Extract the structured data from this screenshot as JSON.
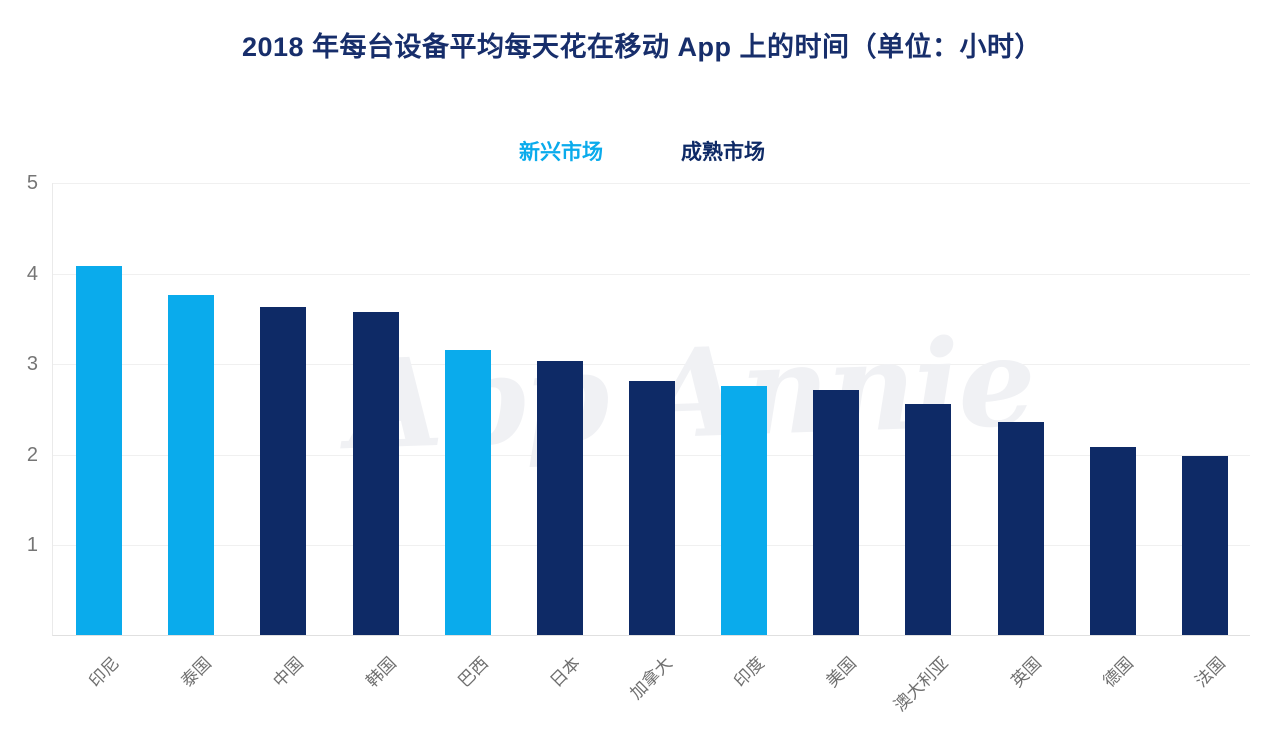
{
  "title": "2018 年每台设备平均每天花在移动 App 上的时间（单位：小时）",
  "title_color": "#172e6b",
  "watermark": "App Annie",
  "legend": {
    "items": [
      {
        "label": "新兴市场",
        "color": "#0aabec"
      },
      {
        "label": "成熟市场",
        "color": "#0e2a66"
      }
    ]
  },
  "chart_data": {
    "type": "bar",
    "title": "2018 年每台设备平均每天花在移动 App 上的时间（单位：小时）",
    "categories": [
      "印尼",
      "泰国",
      "中国",
      "韩国",
      "巴西",
      "日本",
      "加拿大",
      "印度",
      "美国",
      "澳大利亚",
      "英国",
      "德国",
      "法国"
    ],
    "values": [
      4.07,
      3.75,
      3.62,
      3.57,
      3.15,
      3.02,
      2.8,
      2.75,
      2.7,
      2.55,
      2.35,
      2.07,
      1.98
    ],
    "markets": [
      "新兴市场",
      "新兴市场",
      "成熟市场",
      "成熟市场",
      "新兴市场",
      "成熟市场",
      "成熟市场",
      "新兴市场",
      "成熟市场",
      "成熟市场",
      "成熟市场",
      "成熟市场",
      "成熟市场"
    ],
    "market_colors": {
      "新兴市场": "#0aabec",
      "成熟市场": "#0e2a66"
    },
    "xlabel": "",
    "ylabel": "",
    "ylim": [
      0,
      5
    ],
    "yticks": [
      1,
      2,
      3,
      4,
      5
    ],
    "grid": true,
    "legend_position": "top-center",
    "watermark": "App Annie"
  }
}
